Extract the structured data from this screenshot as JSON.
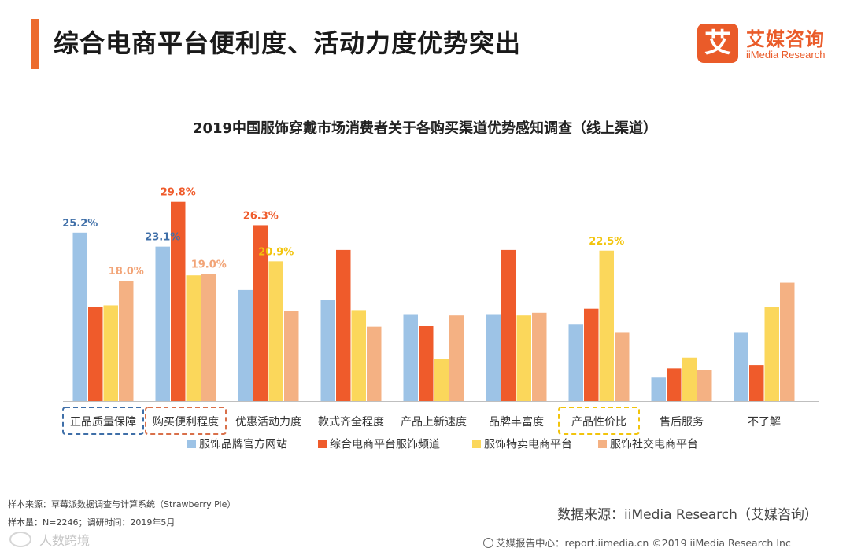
{
  "header": {
    "title": "综合电商平台便利度、活动力度优势突出",
    "logo_mark": "艾",
    "logo_cn": "艾媒咨询",
    "logo_en": "iiMedia Research"
  },
  "chart_data": {
    "type": "bar",
    "title": "2019中国服饰穿戴市场消费者关于各购买渠道优势感知调查（线上渠道）",
    "categories": [
      "正品质量保障",
      "购买便利程度",
      "优惠活动力度",
      "款式齐全程度",
      "产品上新速度",
      "品牌丰富度",
      "产品性价比",
      "售后服务",
      "不了解"
    ],
    "highlighted": [
      {
        "category": "正品质量保障",
        "color": "#3f6fa8"
      },
      {
        "category": "购买便利程度",
        "color": "#d9704a"
      },
      {
        "category": "产品性价比",
        "color": "#f2c40c"
      }
    ],
    "series": [
      {
        "name": "服饰品牌官方网站",
        "color": "#9dc3e6",
        "label_color": "#3f6fa8",
        "values": [
          25.2,
          23.1,
          16.6,
          15.1,
          13.0,
          13.0,
          11.5,
          3.5,
          10.3
        ]
      },
      {
        "name": "综合电商平台服饰频道",
        "color": "#ef5b2b",
        "label_color": "#ef5b2b",
        "values": [
          14.0,
          29.8,
          26.3,
          22.6,
          11.2,
          22.6,
          13.8,
          4.9,
          5.4
        ]
      },
      {
        "name": "服饰特卖电商平台",
        "color": "#fbd75b",
        "label_color": "#f2c40c",
        "values": [
          14.3,
          18.8,
          20.9,
          13.6,
          6.3,
          12.8,
          22.5,
          6.5,
          14.1
        ]
      },
      {
        "name": "服饰社交电商平台",
        "color": "#f4b183",
        "label_color": "#f2a477",
        "values": [
          18.0,
          19.0,
          13.5,
          11.1,
          12.8,
          13.2,
          10.3,
          4.7,
          17.7
        ]
      }
    ],
    "data_labels": [
      {
        "series": 0,
        "category": 0,
        "text": "25.2%"
      },
      {
        "series": 3,
        "category": 0,
        "text": "18.0%"
      },
      {
        "series": 0,
        "category": 1,
        "text": "23.1%"
      },
      {
        "series": 1,
        "category": 1,
        "text": "29.8%"
      },
      {
        "series": 3,
        "category": 1,
        "text": "19.0%"
      },
      {
        "series": 1,
        "category": 2,
        "text": "26.3%"
      },
      {
        "series": 2,
        "category": 2,
        "text": "20.9%"
      },
      {
        "series": 2,
        "category": 6,
        "text": "22.5%"
      }
    ],
    "ylim": [
      0,
      30
    ],
    "legend": "bottom",
    "grid": false,
    "xlabel": "",
    "ylabel": ""
  },
  "footer": {
    "sample_source": "样本来源：草莓派数据调查与计算系统（Strawberry  Pie）",
    "sample_size": "样本量：N=2246；调研时间：2019年5月",
    "data_source": "数据来源：iiMedia Research（艾媒咨询）",
    "report_center": "艾媒报告中心：report.iimedia.cn  ©2019  iiMedia Research  Inc",
    "watermark": "人数跨境"
  }
}
